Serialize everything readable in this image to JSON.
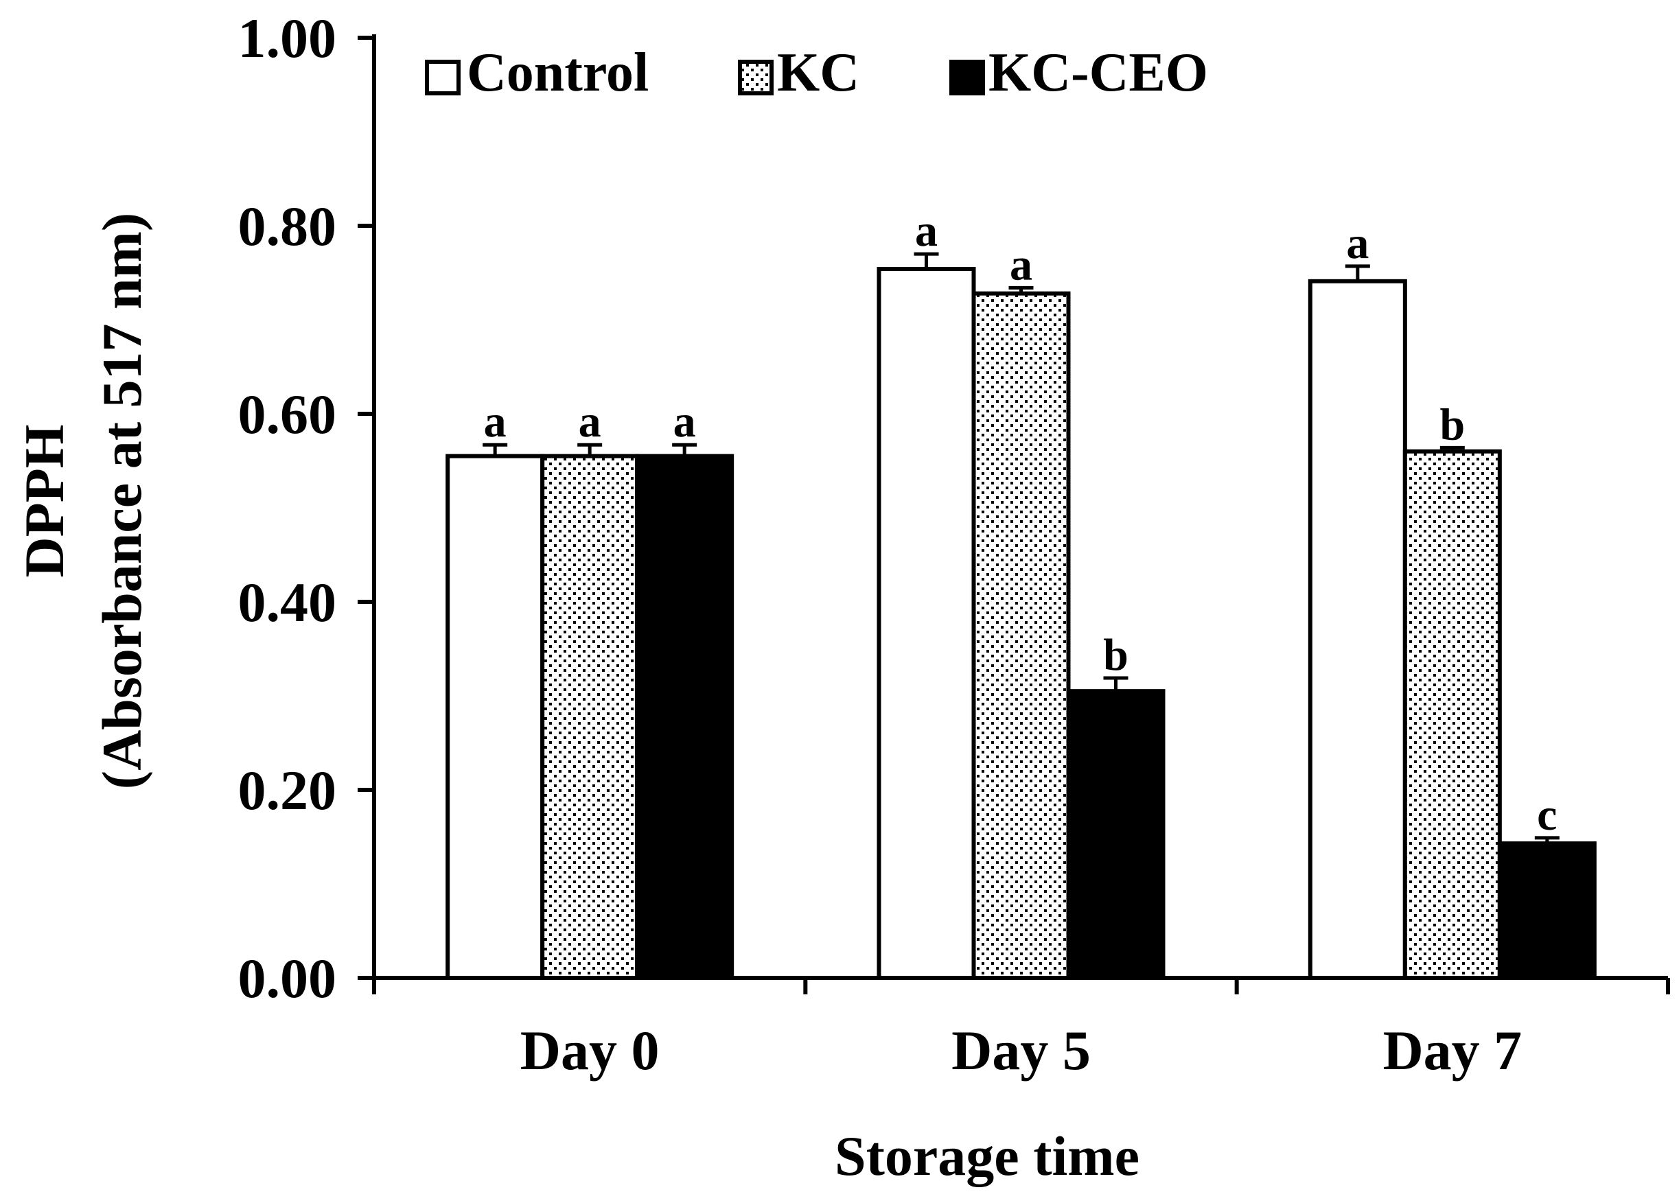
{
  "chart_data": {
    "type": "bar",
    "title": "",
    "xlabel": "Storage time",
    "ylabel": [
      "DPPH",
      "(Absorbance at 517 nm)"
    ],
    "ylim": [
      0,
      1.0
    ],
    "yticks": [
      0.0,
      0.2,
      0.4,
      0.6,
      0.8,
      1.0
    ],
    "ytick_labels": [
      "0.00",
      "0.20",
      "0.40",
      "0.60",
      "0.80",
      "1.00"
    ],
    "grid": false,
    "legend_position": "top",
    "categories": [
      "Day 0",
      "Day 5",
      "Day 7"
    ],
    "series": [
      {
        "name": "Control",
        "pattern": "white",
        "values": [
          0.555,
          0.754,
          0.741
        ],
        "errors": [
          0.012,
          0.016,
          0.016
        ],
        "significance": [
          "a",
          "a",
          "a"
        ]
      },
      {
        "name": "KC",
        "pattern": "dotted",
        "values": [
          0.555,
          0.728,
          0.56
        ],
        "errors": [
          0.012,
          0.006,
          0.004
        ],
        "significance": [
          "a",
          "a",
          "b"
        ]
      },
      {
        "name": "KC-CEO",
        "pattern": "black",
        "values": [
          0.555,
          0.305,
          0.143
        ],
        "errors": [
          0.012,
          0.014,
          0.006
        ],
        "significance": [
          "a",
          "b",
          "c"
        ]
      }
    ]
  },
  "colors": {
    "axis": "#000000",
    "bar_outline": "#000000",
    "control_fill": "#ffffff",
    "kc_fill": "#ffffff",
    "kc_dot": "#000000",
    "kcceo_fill": "#000000"
  }
}
